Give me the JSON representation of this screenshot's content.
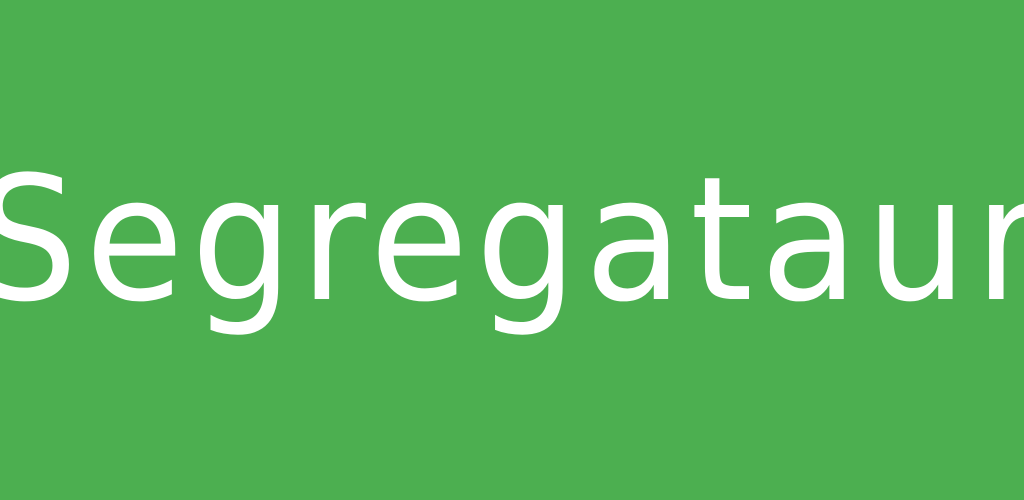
{
  "banner": {
    "title": "Segregataur",
    "background_color": "#4caf50",
    "text_color": "#ffffff"
  }
}
